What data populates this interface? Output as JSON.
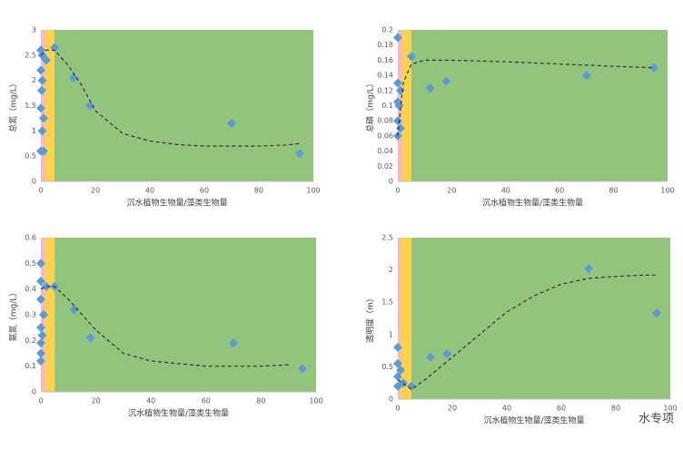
{
  "chart_data": [
    {
      "type": "scatter",
      "ylabel": "总氮（mg/L）",
      "xlabel": "沉水植物生物量/藻类生物量",
      "xlim": [
        0,
        100
      ],
      "xticks": [
        0,
        20,
        40,
        60,
        80,
        100
      ],
      "ylim": [
        0,
        3
      ],
      "yticks": [
        0,
        0.5,
        1,
        1.5,
        2,
        2.5,
        3
      ],
      "color": "#5b9bd5",
      "trend_color": "#333333",
      "bands": [
        {
          "from": 0,
          "to": 1.5,
          "color": "#f4b8c8"
        },
        {
          "from": 1.5,
          "to": 5,
          "color": "#ffd24d"
        },
        {
          "from": 5,
          "to": 100,
          "color": "#93c47d"
        }
      ],
      "x": [
        0,
        0.5,
        0,
        0.5,
        0.3,
        0,
        1,
        0.5,
        0,
        1,
        2,
        5,
        12,
        18,
        70,
        95
      ],
      "values": [
        2.6,
        2.5,
        2.2,
        2.0,
        1.8,
        1.45,
        1.25,
        1.0,
        0.6,
        0.6,
        2.4,
        2.65,
        2.05,
        1.5,
        1.15,
        0.55
      ],
      "trend_x": [
        0,
        2,
        5,
        10,
        15,
        20,
        30,
        40,
        50,
        60,
        70,
        80,
        90,
        95
      ],
      "trend_y": [
        2.5,
        2.6,
        2.6,
        2.3,
        1.9,
        1.4,
        0.95,
        0.8,
        0.73,
        0.7,
        0.7,
        0.7,
        0.72,
        0.75
      ]
    },
    {
      "type": "scatter",
      "ylabel": "总磷（mg/L）",
      "xlabel": "沉水植物生物量/藻类生物量",
      "xlim": [
        0,
        100
      ],
      "xticks": [
        0,
        20,
        40,
        60,
        80,
        100
      ],
      "ylim": [
        0,
        0.2
      ],
      "yticks": [
        0,
        0.02,
        0.04,
        0.06,
        0.08,
        0.1,
        0.12,
        0.14,
        0.16,
        0.18,
        0.2
      ],
      "color": "#5b9bd5",
      "trend_color": "#333333",
      "bands": [
        {
          "from": 0,
          "to": 1.5,
          "color": "#f4b8c8"
        },
        {
          "from": 1.5,
          "to": 5,
          "color": "#ffd24d"
        },
        {
          "from": 5,
          "to": 100,
          "color": "#93c47d"
        }
      ],
      "x": [
        0,
        0,
        1,
        0,
        0.5,
        0,
        1,
        0,
        5,
        12,
        18,
        70,
        95
      ],
      "values": [
        0.19,
        0.13,
        0.12,
        0.105,
        0.1,
        0.08,
        0.07,
        0.06,
        0.165,
        0.123,
        0.132,
        0.14,
        0.15
      ],
      "trend_x": [
        0,
        2,
        5,
        10,
        20,
        40,
        60,
        80,
        95
      ],
      "trend_y": [
        0.06,
        0.13,
        0.155,
        0.16,
        0.16,
        0.158,
        0.155,
        0.152,
        0.15
      ]
    },
    {
      "type": "scatter",
      "ylabel": "氨氮（mg/L）",
      "xlabel": "沉水植物生物量/藻类生物量",
      "xlim": [
        0,
        100
      ],
      "xticks": [
        0,
        20,
        40,
        60,
        80,
        100
      ],
      "ylim": [
        0,
        0.6
      ],
      "yticks": [
        0,
        0.1,
        0.2,
        0.3,
        0.4,
        0.5,
        0.6
      ],
      "color": "#5b9bd5",
      "trend_color": "#333333",
      "bands": [
        {
          "from": 0,
          "to": 1.5,
          "color": "#f4b8c8"
        },
        {
          "from": 1.5,
          "to": 5,
          "color": "#ffd24d"
        },
        {
          "from": 5,
          "to": 100,
          "color": "#93c47d"
        }
      ],
      "x": [
        0,
        0,
        2,
        5,
        0,
        1,
        0,
        0.5,
        0,
        0,
        0,
        12,
        18,
        70,
        95
      ],
      "values": [
        0.5,
        0.43,
        0.41,
        0.41,
        0.36,
        0.3,
        0.25,
        0.22,
        0.19,
        0.15,
        0.12,
        0.32,
        0.21,
        0.19,
        0.09
      ],
      "trend_x": [
        0,
        2,
        5,
        10,
        15,
        20,
        30,
        40,
        60,
        80,
        90
      ],
      "trend_y": [
        0.4,
        0.41,
        0.41,
        0.36,
        0.3,
        0.24,
        0.15,
        0.12,
        0.1,
        0.1,
        0.105
      ]
    },
    {
      "type": "scatter",
      "ylabel": "透明度（m）",
      "xlabel": "沉水植物生物量/藻类生物量",
      "xlim": [
        0,
        100
      ],
      "xticks": [
        0,
        20,
        40,
        60,
        80,
        100
      ],
      "ylim": [
        0,
        2.5
      ],
      "yticks": [
        0,
        0.5,
        1,
        1.5,
        2,
        2.5
      ],
      "color": "#5b9bd5",
      "trend_color": "#333333",
      "bands": [
        {
          "from": 0,
          "to": 1,
          "color": "#f4b8c8"
        },
        {
          "from": 1,
          "to": 5,
          "color": "#ffd24d"
        },
        {
          "from": 5,
          "to": 100,
          "color": "#93c47d"
        }
      ],
      "x": [
        0,
        0,
        1,
        0,
        2,
        0,
        5,
        12,
        18,
        70,
        95
      ],
      "values": [
        0.8,
        0.55,
        0.45,
        0.35,
        0.25,
        0.2,
        0.2,
        0.65,
        0.7,
        2.02,
        1.33
      ],
      "trend_x": [
        0,
        5,
        10,
        20,
        30,
        40,
        50,
        60,
        70,
        80,
        90,
        95
      ],
      "trend_y": [
        0.3,
        0.15,
        0.3,
        0.65,
        1.0,
        1.35,
        1.6,
        1.78,
        1.87,
        1.9,
        1.92,
        1.92
      ]
    }
  ],
  "watermark": "水专项"
}
